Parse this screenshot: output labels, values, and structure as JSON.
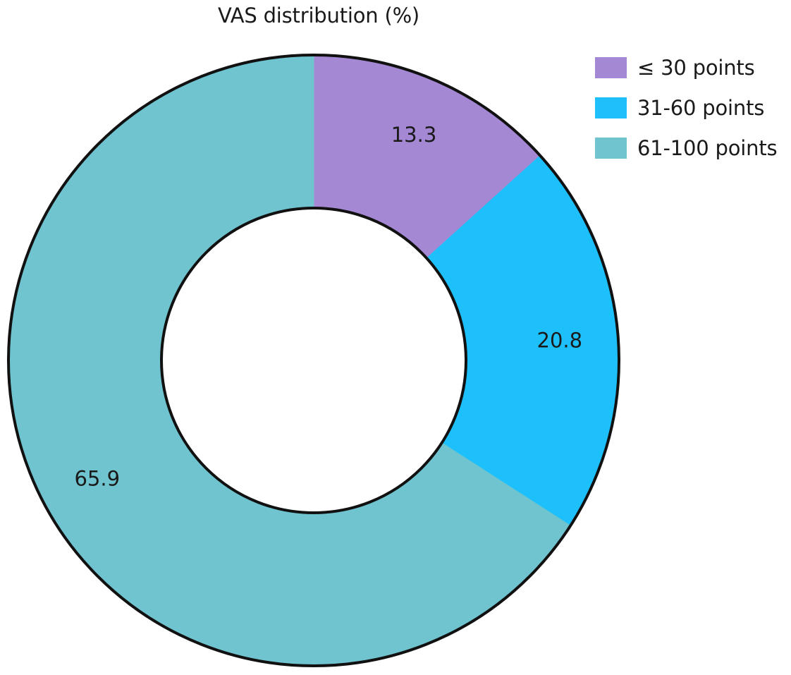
{
  "chart_data": {
    "type": "pie",
    "title": "VAS distribution (%)",
    "variant": "donut",
    "legend_position": "top-right",
    "slices": [
      {
        "label": "≤ 30 points",
        "value": 13.3,
        "value_label": "13.3",
        "color": "#a488d4"
      },
      {
        "label": "31-60 points",
        "value": 20.8,
        "value_label": "20.8",
        "color": "#1ec0fb"
      },
      {
        "label": "61-100 points",
        "value": 65.9,
        "value_label": "65.9",
        "color": "#6fc4cf"
      }
    ]
  }
}
